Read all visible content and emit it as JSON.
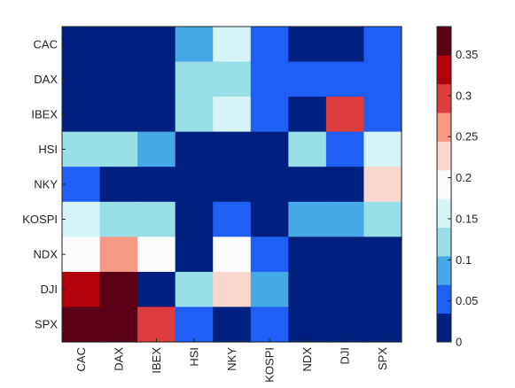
{
  "chart_data": {
    "type": "heatmap",
    "title": "",
    "xlabel": "",
    "ylabel": "",
    "rows": [
      "CAC",
      "DAX",
      "IBEX",
      "HSI",
      "NKY",
      "KOSPI",
      "NDX",
      "DJI",
      "SPX"
    ],
    "columns": [
      "CAC",
      "DAX",
      "IBEX",
      "HSI",
      "NKY",
      "KOSPI",
      "NDX",
      "DJI",
      "SPX"
    ],
    "values": [
      [
        0.0,
        0.0,
        0.0,
        0.1,
        0.16,
        0.06,
        0.0,
        0.0,
        0.06
      ],
      [
        0.0,
        0.0,
        0.0,
        0.13,
        0.13,
        0.06,
        0.06,
        0.06,
        0.06
      ],
      [
        0.0,
        0.0,
        0.0,
        0.13,
        0.16,
        0.06,
        0.0,
        0.31,
        0.06
      ],
      [
        0.13,
        0.13,
        0.1,
        0.0,
        0.0,
        0.0,
        0.13,
        0.06,
        0.16
      ],
      [
        0.06,
        0.0,
        0.0,
        0.0,
        0.0,
        0.0,
        0.0,
        0.0,
        0.22
      ],
      [
        0.16,
        0.13,
        0.13,
        0.0,
        0.06,
        0.0,
        0.1,
        0.1,
        0.13
      ],
      [
        0.19,
        0.25,
        0.19,
        0.0,
        0.19,
        0.06,
        0.0,
        0.0,
        0.0
      ],
      [
        0.34,
        0.38,
        0.0,
        0.13,
        0.22,
        0.1,
        0.0,
        0.0,
        0.0
      ],
      [
        0.38,
        0.38,
        0.31,
        0.06,
        0.0,
        0.06,
        0.0,
        0.0,
        0.0
      ]
    ],
    "colorbar": {
      "min": 0,
      "max": 0.384,
      "ticks": [
        0,
        0.05,
        0.1,
        0.15,
        0.2,
        0.25,
        0.3,
        0.35
      ],
      "tick_labels": [
        "0",
        "0.05",
        "0.1",
        "0.15",
        "0.2",
        "0.25",
        "0.3",
        "0.35"
      ],
      "colors": [
        "#00207f",
        "#1f5ff5",
        "#46a8e6",
        "#99dfe8",
        "#d6f3f5",
        "#fbfbfb",
        "#fad7cd",
        "#f59b85",
        "#dd3d3d",
        "#b3000d",
        "#5c0016"
      ]
    },
    "grid": false,
    "colorbar_placement": "right"
  }
}
